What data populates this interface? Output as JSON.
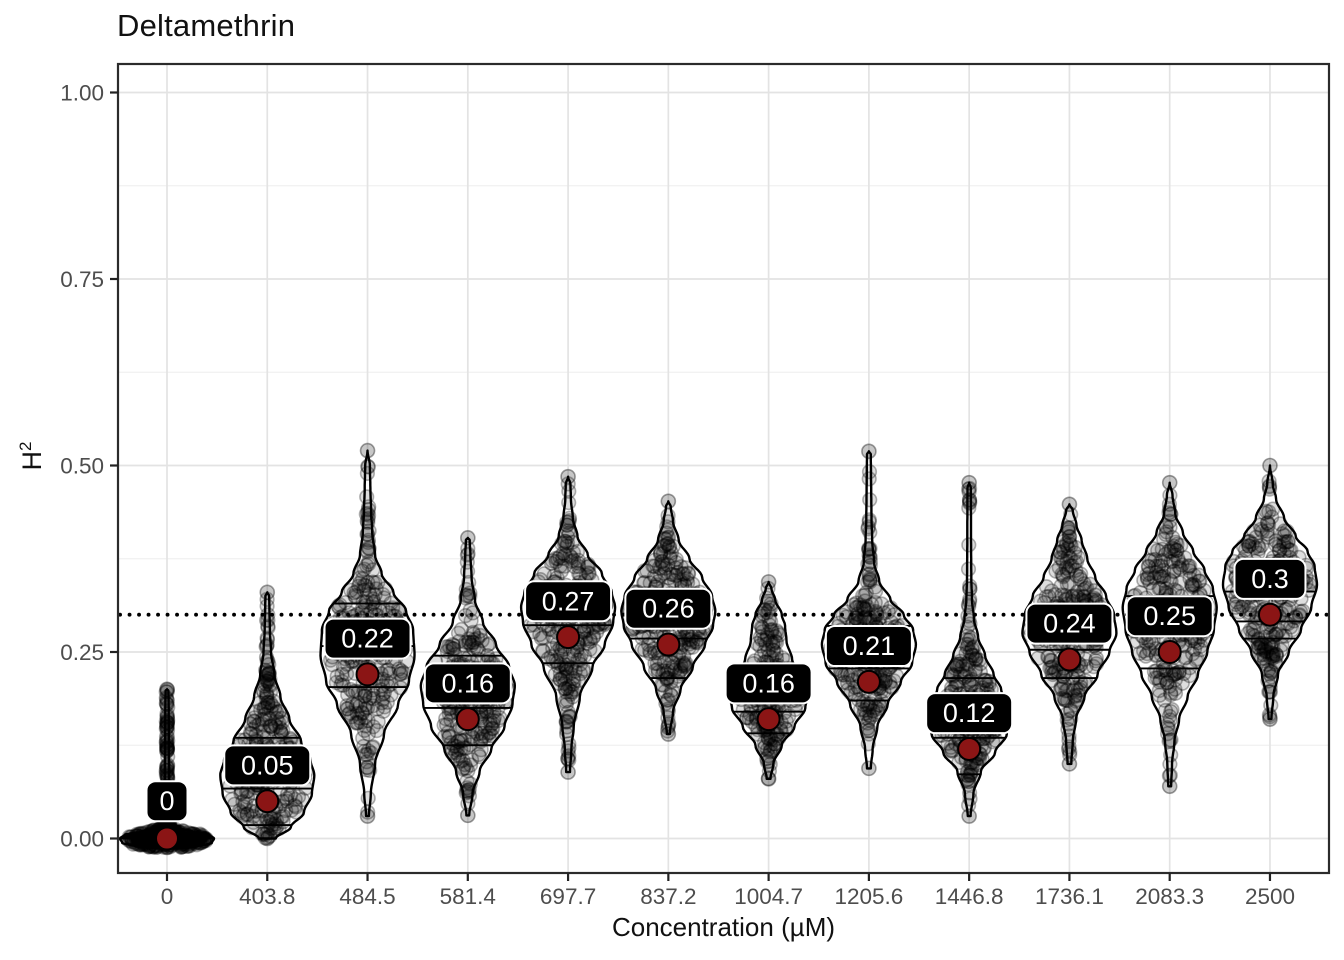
{
  "chart_data": {
    "type": "violin",
    "title": "Deltamethrin",
    "xlabel": "Concentration (µM)",
    "ylabel": {
      "base": "H",
      "sup": "2"
    },
    "ylim": [
      0,
      1.05
    ],
    "yticks": [
      0,
      0.25,
      0.5,
      0.75,
      1.0
    ],
    "ytick_labels": [
      "0.00",
      "0.25",
      "0.50",
      "0.75",
      "1.00"
    ],
    "minor_gridlines": [
      0.125,
      0.375,
      0.625,
      0.875
    ],
    "grid": true,
    "legend": false,
    "reference_line": {
      "value": 0.3,
      "style": "dotted"
    },
    "categories": [
      "0",
      "403.8",
      "484.5",
      "581.4",
      "697.7",
      "837.2",
      "1004.7",
      "1205.6",
      "1446.8",
      "1736.1",
      "2083.3",
      "2500"
    ],
    "groups": [
      {
        "category": "0",
        "mean": 0.0,
        "mean_label": "0",
        "label_y": 0.05,
        "quartiles": [
          0.0,
          0.002,
          0.004
        ],
        "min": -0.012,
        "max": 0.2,
        "jitter_n": 400,
        "seed": 11,
        "width_profile": [
          [
            -0.014,
            0.05
          ],
          [
            -0.011,
            0.6
          ],
          [
            -0.006,
            0.95
          ],
          [
            0.0,
            1.0
          ],
          [
            0.005,
            0.9
          ],
          [
            0.009,
            0.55
          ],
          [
            0.014,
            0.28
          ],
          [
            0.02,
            0.14
          ],
          [
            0.028,
            0.08
          ],
          [
            0.04,
            0.055
          ],
          [
            0.06,
            0.05
          ],
          [
            0.09,
            0.045
          ],
          [
            0.12,
            0.04
          ],
          [
            0.15,
            0.038
          ],
          [
            0.18,
            0.035
          ],
          [
            0.198,
            0.03
          ],
          [
            0.2,
            0.0
          ]
        ]
      },
      {
        "category": "403.8",
        "mean": 0.05,
        "mean_label": "0.05",
        "label_y": 0.098,
        "quartiles": [
          0.018,
          0.067,
          0.135
        ],
        "min": 0.0,
        "max": 0.33,
        "jitter_n": 270,
        "seed": 22,
        "width_profile": [
          [
            0.0,
            0.18
          ],
          [
            0.015,
            0.5
          ],
          [
            0.035,
            0.78
          ],
          [
            0.06,
            0.95
          ],
          [
            0.085,
            1.0
          ],
          [
            0.105,
            0.92
          ],
          [
            0.13,
            0.72
          ],
          [
            0.16,
            0.47
          ],
          [
            0.19,
            0.28
          ],
          [
            0.22,
            0.15
          ],
          [
            0.25,
            0.08
          ],
          [
            0.28,
            0.055
          ],
          [
            0.31,
            0.045
          ],
          [
            0.325,
            0.04
          ],
          [
            0.33,
            0.0
          ]
        ]
      },
      {
        "category": "484.5",
        "mean": 0.22,
        "mean_label": "0.22",
        "label_y": 0.268,
        "quartiles": [
          0.203,
          0.258,
          0.315
        ],
        "min": 0.03,
        "max": 0.52,
        "jitter_n": 270,
        "seed": 33,
        "width_profile": [
          [
            0.03,
            0.03
          ],
          [
            0.06,
            0.07
          ],
          [
            0.1,
            0.16
          ],
          [
            0.14,
            0.35
          ],
          [
            0.18,
            0.65
          ],
          [
            0.21,
            0.88
          ],
          [
            0.245,
            1.0
          ],
          [
            0.28,
            0.97
          ],
          [
            0.305,
            0.82
          ],
          [
            0.33,
            0.55
          ],
          [
            0.355,
            0.3
          ],
          [
            0.38,
            0.16
          ],
          [
            0.41,
            0.1
          ],
          [
            0.44,
            0.075
          ],
          [
            0.47,
            0.06
          ],
          [
            0.5,
            0.05
          ],
          [
            0.52,
            0.0
          ]
        ]
      },
      {
        "category": "581.4",
        "mean": 0.16,
        "mean_label": "0.16",
        "label_y": 0.208,
        "quartiles": [
          0.125,
          0.175,
          0.245
        ],
        "min": 0.031,
        "max": 0.403,
        "jitter_n": 260,
        "seed": 44,
        "width_profile": [
          [
            0.031,
            0.03
          ],
          [
            0.06,
            0.1
          ],
          [
            0.09,
            0.25
          ],
          [
            0.12,
            0.5
          ],
          [
            0.15,
            0.78
          ],
          [
            0.18,
            0.95
          ],
          [
            0.205,
            1.0
          ],
          [
            0.23,
            0.88
          ],
          [
            0.26,
            0.6
          ],
          [
            0.29,
            0.32
          ],
          [
            0.32,
            0.15
          ],
          [
            0.35,
            0.08
          ],
          [
            0.38,
            0.055
          ],
          [
            0.4,
            0.04
          ],
          [
            0.403,
            0.0
          ]
        ]
      },
      {
        "category": "697.7",
        "mean": 0.27,
        "mean_label": "0.27",
        "label_y": 0.318,
        "quartiles": [
          0.235,
          0.286,
          0.335
        ],
        "min": 0.089,
        "max": 0.485,
        "jitter_n": 260,
        "seed": 55,
        "width_profile": [
          [
            0.089,
            0.04
          ],
          [
            0.12,
            0.07
          ],
          [
            0.15,
            0.12
          ],
          [
            0.19,
            0.25
          ],
          [
            0.23,
            0.52
          ],
          [
            0.26,
            0.78
          ],
          [
            0.29,
            0.96
          ],
          [
            0.31,
            1.0
          ],
          [
            0.33,
            0.93
          ],
          [
            0.355,
            0.72
          ],
          [
            0.38,
            0.42
          ],
          [
            0.405,
            0.2
          ],
          [
            0.43,
            0.1
          ],
          [
            0.455,
            0.06
          ],
          [
            0.475,
            0.05
          ],
          [
            0.485,
            0.0
          ]
        ]
      },
      {
        "category": "837.2",
        "mean": 0.26,
        "mean_label": "0.26",
        "label_y": 0.308,
        "quartiles": [
          0.215,
          0.268,
          0.318
        ],
        "min": 0.14,
        "max": 0.452,
        "jitter_n": 250,
        "seed": 66,
        "width_profile": [
          [
            0.14,
            0.03
          ],
          [
            0.17,
            0.1
          ],
          [
            0.2,
            0.26
          ],
          [
            0.23,
            0.52
          ],
          [
            0.26,
            0.78
          ],
          [
            0.285,
            0.95
          ],
          [
            0.305,
            1.0
          ],
          [
            0.325,
            0.93
          ],
          [
            0.35,
            0.72
          ],
          [
            0.375,
            0.45
          ],
          [
            0.4,
            0.22
          ],
          [
            0.425,
            0.1
          ],
          [
            0.445,
            0.05
          ],
          [
            0.452,
            0.0
          ]
        ]
      },
      {
        "category": "1004.7",
        "mean": 0.16,
        "mean_label": "0.16",
        "label_y": 0.208,
        "quartiles": [
          0.141,
          0.17,
          0.225
        ],
        "min": 0.08,
        "max": 0.344,
        "jitter_n": 230,
        "seed": 77,
        "width_profile": [
          [
            0.08,
            0.04
          ],
          [
            0.1,
            0.1
          ],
          [
            0.125,
            0.28
          ],
          [
            0.15,
            0.55
          ],
          [
            0.175,
            0.78
          ],
          [
            0.195,
            0.85
          ],
          [
            0.215,
            0.75
          ],
          [
            0.24,
            0.5
          ],
          [
            0.265,
            0.38
          ],
          [
            0.285,
            0.35
          ],
          [
            0.3,
            0.28
          ],
          [
            0.32,
            0.14
          ],
          [
            0.335,
            0.06
          ],
          [
            0.344,
            0.0
          ]
        ]
      },
      {
        "category": "1205.6",
        "mean": 0.21,
        "mean_label": "0.21",
        "label_y": 0.258,
        "quartiles": [
          0.185,
          0.228,
          0.285
        ],
        "min": 0.094,
        "max": 0.519,
        "jitter_n": 260,
        "seed": 88,
        "width_profile": [
          [
            0.094,
            0.04
          ],
          [
            0.12,
            0.08
          ],
          [
            0.15,
            0.18
          ],
          [
            0.18,
            0.4
          ],
          [
            0.21,
            0.68
          ],
          [
            0.235,
            0.92
          ],
          [
            0.26,
            1.0
          ],
          [
            0.28,
            0.94
          ],
          [
            0.3,
            0.74
          ],
          [
            0.32,
            0.46
          ],
          [
            0.345,
            0.22
          ],
          [
            0.37,
            0.11
          ],
          [
            0.4,
            0.07
          ],
          [
            0.43,
            0.055
          ],
          [
            0.46,
            0.05
          ],
          [
            0.49,
            0.045
          ],
          [
            0.515,
            0.04
          ],
          [
            0.519,
            0.0
          ]
        ]
      },
      {
        "category": "1446.8",
        "mean": 0.12,
        "mean_label": "0.12",
        "label_y": 0.168,
        "quartiles": [
          0.086,
          0.135,
          0.215
        ],
        "min": 0.03,
        "max": 0.477,
        "jitter_n": 250,
        "seed": 99,
        "width_profile": [
          [
            0.03,
            0.03
          ],
          [
            0.06,
            0.09
          ],
          [
            0.09,
            0.25
          ],
          [
            0.115,
            0.55
          ],
          [
            0.14,
            0.8
          ],
          [
            0.16,
            0.88
          ],
          [
            0.18,
            0.82
          ],
          [
            0.2,
            0.68
          ],
          [
            0.22,
            0.52
          ],
          [
            0.245,
            0.34
          ],
          [
            0.27,
            0.19
          ],
          [
            0.295,
            0.1
          ],
          [
            0.32,
            0.06
          ],
          [
            0.35,
            0.045
          ],
          [
            0.4,
            0.04
          ],
          [
            0.44,
            0.038
          ],
          [
            0.47,
            0.035
          ],
          [
            0.477,
            0.0
          ]
        ]
      },
      {
        "category": "1736.1",
        "mean": 0.24,
        "mean_label": "0.24",
        "label_y": 0.288,
        "quartiles": [
          0.215,
          0.253,
          0.305
        ],
        "min": 0.1,
        "max": 0.448,
        "jitter_n": 260,
        "seed": 110,
        "width_profile": [
          [
            0.1,
            0.04
          ],
          [
            0.13,
            0.07
          ],
          [
            0.16,
            0.14
          ],
          [
            0.19,
            0.32
          ],
          [
            0.22,
            0.6
          ],
          [
            0.25,
            0.85
          ],
          [
            0.275,
            1.0
          ],
          [
            0.3,
            0.95
          ],
          [
            0.325,
            0.78
          ],
          [
            0.35,
            0.55
          ],
          [
            0.375,
            0.38
          ],
          [
            0.4,
            0.26
          ],
          [
            0.42,
            0.15
          ],
          [
            0.44,
            0.07
          ],
          [
            0.448,
            0.0
          ]
        ]
      },
      {
        "category": "2083.3",
        "mean": 0.25,
        "mean_label": "0.25",
        "label_y": 0.298,
        "quartiles": [
          0.228,
          0.273,
          0.325
        ],
        "min": 0.07,
        "max": 0.477,
        "jitter_n": 260,
        "seed": 121,
        "width_profile": [
          [
            0.07,
            0.03
          ],
          [
            0.1,
            0.05
          ],
          [
            0.13,
            0.1
          ],
          [
            0.16,
            0.2
          ],
          [
            0.19,
            0.38
          ],
          [
            0.22,
            0.6
          ],
          [
            0.25,
            0.8
          ],
          [
            0.28,
            0.94
          ],
          [
            0.31,
            1.0
          ],
          [
            0.335,
            0.92
          ],
          [
            0.36,
            0.74
          ],
          [
            0.385,
            0.5
          ],
          [
            0.41,
            0.28
          ],
          [
            0.435,
            0.12
          ],
          [
            0.46,
            0.06
          ],
          [
            0.477,
            0.0
          ]
        ]
      },
      {
        "category": "2500",
        "mean": 0.3,
        "mean_label": "0.3",
        "label_y": 0.348,
        "quartiles": [
          0.268,
          0.291,
          0.331
        ],
        "min": 0.16,
        "max": 0.5,
        "jitter_n": 250,
        "seed": 132,
        "width_profile": [
          [
            0.16,
            0.03
          ],
          [
            0.19,
            0.07
          ],
          [
            0.22,
            0.17
          ],
          [
            0.25,
            0.4
          ],
          [
            0.28,
            0.66
          ],
          [
            0.31,
            0.88
          ],
          [
            0.34,
            1.0
          ],
          [
            0.365,
            0.95
          ],
          [
            0.385,
            0.8
          ],
          [
            0.405,
            0.55
          ],
          [
            0.43,
            0.3
          ],
          [
            0.455,
            0.13
          ],
          [
            0.475,
            0.06
          ],
          [
            0.5,
            0.0
          ]
        ]
      }
    ],
    "colors": {
      "mean_dot": "#8B1515",
      "violin_fill": "#FFFFFF",
      "violin_outline": "#000000",
      "label_bg": "#000000",
      "label_border": "#FFFFFF",
      "label_text": "#FFFFFF",
      "point_fill": "rgba(0,0,0,0.13)",
      "point_stroke": "rgba(0,0,0,0.30)",
      "grid_major": "#E3E3E3",
      "grid_minor": "#F1F1F1",
      "panel_border": "#2B2B2B",
      "tick_text": "#4D4D4D",
      "reference_line": "#000000"
    }
  }
}
